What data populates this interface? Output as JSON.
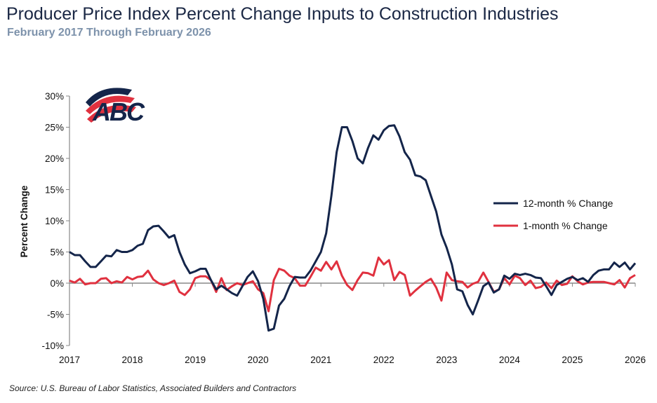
{
  "title": "Producer Price Index Percent Change Inputs to Construction Industries",
  "subtitle": "February 2017 Through February 2026",
  "source": "Source: U.S. Bureau of Labor Statistics, Associated Builders and Contractors",
  "logo_text": "ABC",
  "colors": {
    "twelve_month": "#14254a",
    "one_month": "#e0313f",
    "axis": "#888888"
  },
  "chart_data": {
    "type": "line",
    "ylabel": "Percent Change",
    "xlabel": "",
    "ylim": [
      -10,
      30
    ],
    "yticks": [
      "-10%",
      "-5%",
      "0%",
      "5%",
      "10%",
      "15%",
      "20%",
      "25%",
      "30%"
    ],
    "xticks": [
      "2017",
      "2018",
      "2019",
      "2020",
      "2021",
      "2022",
      "2023",
      "2024",
      "2025",
      "2026"
    ],
    "x_start": "2017-02",
    "x_end": "2026-02",
    "frequency": "monthly",
    "grid": false,
    "legend_placement": "right",
    "series": [
      {
        "name": "12-month % Change",
        "values": [
          5.0,
          4.5,
          4.5,
          3.5,
          2.6,
          2.6,
          3.5,
          4.4,
          4.3,
          5.3,
          5.0,
          5.0,
          5.3,
          6.0,
          6.3,
          8.5,
          9.1,
          9.2,
          8.3,
          7.3,
          7.7,
          5.0,
          3.0,
          1.6,
          1.9,
          2.3,
          2.3,
          0.5,
          -1.0,
          -0.4,
          -1.0,
          -1.6,
          -2.0,
          -0.5,
          1.0,
          1.9,
          0.3,
          -2.5,
          -7.6,
          -7.3,
          -3.6,
          -2.5,
          -0.5,
          1.0,
          0.9,
          0.9,
          2.0,
          3.5,
          5.0,
          8.0,
          14.0,
          21.0,
          25.0,
          25.0,
          22.8,
          20.0,
          19.2,
          21.7,
          23.7,
          23.0,
          24.5,
          25.2,
          25.3,
          23.5,
          21.0,
          19.8,
          17.3,
          17.1,
          16.5,
          14.0,
          11.5,
          7.8,
          5.7,
          3.0,
          -1.0,
          -1.3,
          -3.5,
          -5.0,
          -2.8,
          -0.5,
          0.1,
          -1.5,
          -1.0,
          1.2,
          0.7,
          1.5,
          1.3,
          1.5,
          1.3,
          0.9,
          0.8,
          -0.5,
          -1.9,
          -0.3,
          0.2,
          0.7,
          1.0,
          0.5,
          0.8,
          0.2,
          1.3,
          2.0,
          2.2,
          2.2,
          3.3,
          2.6,
          3.3,
          2.2,
          3.2
        ]
      },
      {
        "name": "1-month % Change",
        "values": [
          0.4,
          0.1,
          0.7,
          -0.2,
          0.0,
          0.0,
          0.7,
          0.8,
          0.0,
          0.3,
          0.1,
          1.0,
          0.6,
          1.0,
          1.1,
          2.0,
          0.6,
          0.0,
          -0.3,
          0.0,
          0.4,
          -1.4,
          -1.9,
          -1.0,
          0.8,
          1.1,
          1.1,
          0.5,
          -1.4,
          0.8,
          -1.1,
          -0.5,
          0.0,
          -0.3,
          0.0,
          0.3,
          -1.0,
          -1.6,
          -4.5,
          0.5,
          2.3,
          2.0,
          1.2,
          0.8,
          -0.4,
          -0.4,
          1.0,
          2.5,
          2.0,
          3.4,
          2.2,
          3.5,
          1.2,
          -0.3,
          -1.1,
          0.5,
          1.7,
          1.6,
          1.2,
          4.1,
          3.0,
          3.7,
          0.5,
          1.8,
          1.3,
          -2.0,
          -1.2,
          -0.5,
          0.2,
          0.7,
          -0.7,
          -2.8,
          1.7,
          0.5,
          0.3,
          0.2,
          -0.7,
          -0.1,
          0.2,
          1.7,
          0.2,
          -1.4,
          -1.0,
          0.8,
          -0.2,
          1.2,
          0.8,
          -0.3,
          0.4,
          -0.8,
          -0.6,
          0.1,
          -0.8,
          0.4,
          -0.3,
          -0.1,
          1.1,
          0.3,
          -0.2,
          0.1,
          0.2,
          0.2,
          0.2,
          0.0,
          -0.2,
          0.5,
          -0.7,
          0.8,
          1.3
        ]
      }
    ]
  }
}
